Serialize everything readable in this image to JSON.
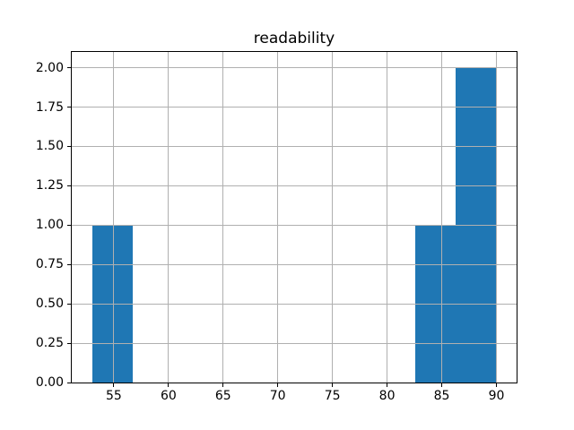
{
  "title": "readability",
  "colors": {
    "bar": "#1f77b4",
    "grid": "#b0b0b0",
    "spine": "#000000",
    "background": "#ffffff",
    "text": "#000000"
  },
  "chart_data": {
    "type": "bar",
    "subtype": "histogram",
    "title": "readability",
    "xlabel": "",
    "ylabel": "",
    "xlim": [
      51.15,
      91.85
    ],
    "ylim": [
      0,
      2.1
    ],
    "grid": true,
    "grid_above_bars": true,
    "legend": "none",
    "x_ticks": [
      55,
      60,
      65,
      70,
      75,
      80,
      85,
      90
    ],
    "x_tick_labels": [
      "55",
      "60",
      "65",
      "70",
      "75",
      "80",
      "85",
      "90"
    ],
    "y_ticks": [
      0,
      0.25,
      0.5,
      0.75,
      1.0,
      1.25,
      1.5,
      1.75,
      2.0
    ],
    "y_tick_labels": [
      "0.00",
      "0.25",
      "0.50",
      "0.75",
      "1.00",
      "1.25",
      "1.50",
      "1.75",
      "2.00"
    ],
    "bins": {
      "edges": [
        53.0,
        56.7,
        60.4,
        64.1,
        67.8,
        71.5,
        75.2,
        78.9,
        82.6,
        86.3,
        90.0
      ],
      "counts": [
        1,
        0,
        0,
        0,
        0,
        0,
        0,
        0,
        1,
        2
      ]
    }
  }
}
